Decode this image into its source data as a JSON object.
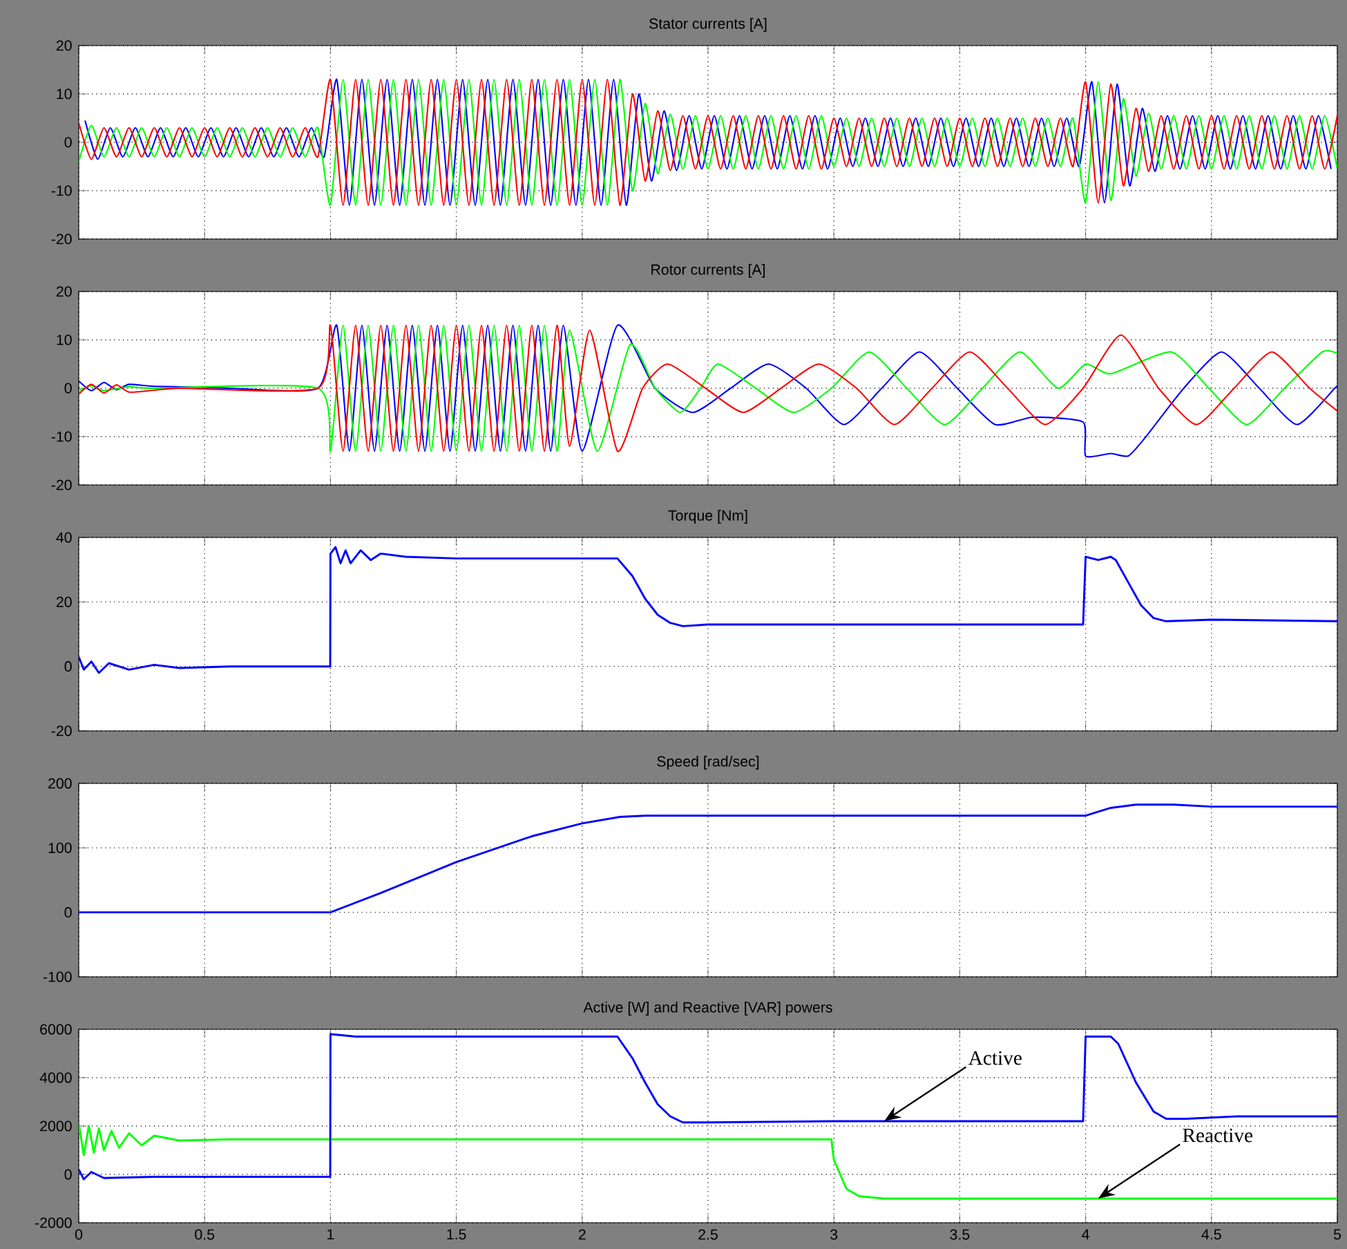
{
  "chart_data": [
    {
      "type": "line",
      "title": "Stator currents [A]",
      "xlim": [
        0,
        5
      ],
      "xticks": [
        0,
        0.5,
        1,
        1.5,
        2,
        2.5,
        3,
        3.5,
        4,
        4.5,
        5
      ],
      "ylim": [
        -20,
        20
      ],
      "yticks": [
        -20,
        -10,
        0,
        10,
        20
      ],
      "grid": true,
      "tick_labels": "y",
      "x": [
        0,
        0.05,
        0.1,
        0.15,
        0.2,
        0.25,
        0.3,
        0.35,
        0.4,
        0.45,
        0.5,
        0.55,
        0.6,
        0.65,
        0.7,
        0.75,
        0.8,
        0.85,
        0.9,
        0.95,
        1,
        1.05,
        1.1,
        1.15,
        1.2,
        1.25,
        1.3,
        1.35,
        1.4,
        1.45,
        1.5,
        1.55,
        1.6,
        1.65,
        1.7,
        1.75,
        1.8,
        1.85,
        1.9,
        1.95,
        2,
        2.05,
        2.1,
        2.15,
        2.2,
        2.25,
        2.3,
        2.35,
        2.4,
        2.45,
        2.5,
        2.55,
        2.6,
        2.65,
        2.7,
        2.75,
        2.8,
        2.85,
        2.9,
        2.95,
        3,
        3.05,
        3.1,
        3.15,
        3.2,
        3.25,
        3.3,
        3.35,
        3.4,
        3.45,
        3.5,
        3.55,
        3.6,
        3.65,
        3.7,
        3.75,
        3.8,
        3.85,
        3.9,
        3.95,
        4,
        4.05,
        4.1,
        4.15,
        4.2,
        4.25,
        4.3,
        4.35,
        4.4,
        4.45,
        4.5,
        4.55,
        4.6,
        4.65,
        4.7,
        4.75,
        4.8,
        4.85,
        4.9,
        4.95,
        5
      ],
      "series": [
        {
          "color": "#0000ff",
          "x": [
            0.025,
            0.075,
            0.125,
            0.175,
            0.225,
            0.275,
            0.325,
            0.375,
            0.425,
            0.475,
            0.525,
            0.575,
            0.625,
            0.675,
            0.725,
            0.775,
            0.825,
            0.875,
            0.925,
            0.975,
            1.025,
            1.075,
            1.125,
            1.175,
            1.225,
            1.275,
            1.325,
            1.375,
            1.425,
            1.475,
            1.525,
            1.575,
            1.625,
            1.675,
            1.725,
            1.775,
            1.825,
            1.875,
            1.925,
            1.975,
            2.025,
            2.075,
            2.125,
            2.175,
            2.225,
            2.275,
            2.325,
            2.375,
            2.425,
            2.475,
            2.525,
            2.575,
            2.625,
            2.675,
            2.725,
            2.775,
            2.825,
            2.875,
            2.925,
            2.975,
            3.025,
            3.075,
            3.125,
            3.175,
            3.225,
            3.275,
            3.325,
            3.375,
            3.425,
            3.475,
            3.525,
            3.575,
            3.625,
            3.675,
            3.725,
            3.775,
            3.825,
            3.875,
            3.925,
            3.975,
            4.025,
            4.075,
            4.125,
            4.175,
            4.225,
            4.275,
            4.325,
            4.375,
            4.425,
            4.475,
            4.525,
            4.575,
            4.625,
            4.675,
            4.725,
            4.775,
            4.825,
            4.875,
            4.925,
            4.975
          ],
          "values": [
            4.5,
            -3.5,
            3,
            -3,
            3,
            -3,
            3,
            -3,
            3,
            -3,
            3,
            -3,
            3,
            -3,
            3,
            -3,
            3,
            -3,
            3,
            -3,
            13,
            -13,
            13,
            -13,
            13,
            -13,
            13,
            -13,
            13,
            -13,
            13,
            -13,
            13,
            -13,
            13,
            -13,
            13,
            -13,
            13,
            -13,
            13,
            -13,
            13,
            -13,
            10,
            -8,
            6.5,
            -5.8,
            5.5,
            -5.5,
            5.5,
            -5.5,
            5.5,
            -5.5,
            5.5,
            -5.5,
            5.5,
            -5.5,
            5.5,
            -5.5,
            5,
            -5,
            5,
            -5,
            5,
            -5,
            5,
            -5,
            5,
            -5,
            5,
            -5,
            5,
            -5,
            5,
            -5,
            5,
            -5,
            5,
            -5,
            12.5,
            -12.5,
            12,
            -9,
            7,
            -6,
            5.5,
            -5.5,
            5.5,
            -5.5,
            5.5,
            -5.5,
            5.5,
            -5.5,
            5.5,
            -5.5,
            5.5,
            -5.5,
            5.5,
            -5.5
          ]
        },
        {
          "color": "#00ff00",
          "values": [
            -4,
            3.5,
            -3,
            3,
            -3,
            3,
            -3,
            3,
            -3,
            3,
            -3,
            3,
            -3,
            3,
            -3,
            3,
            -3,
            3,
            -3,
            3,
            -13,
            13,
            -13,
            13,
            -13,
            13,
            -13,
            13,
            -13,
            13,
            -13,
            13,
            -13,
            13,
            -13,
            13,
            -13,
            13,
            -13,
            13,
            -13,
            13,
            -13,
            13,
            -10,
            8,
            -6.5,
            5.8,
            -5.5,
            5.5,
            -5.5,
            5.5,
            -5.5,
            5.5,
            -5.5,
            5.5,
            -5.5,
            5.5,
            -5.5,
            5.5,
            -5,
            5,
            -5,
            5,
            -5,
            5,
            -5,
            5,
            -5,
            5,
            -5,
            5,
            -5,
            5,
            -5,
            5,
            -5,
            5,
            -5,
            5,
            -12.5,
            12.5,
            -12,
            9,
            -7,
            6,
            -5.5,
            5.5,
            -5.5,
            5.5,
            -5.5,
            5.5,
            -5.5,
            5.5,
            -5.5,
            5.5,
            -5.5,
            5.5,
            -5.5,
            5.5,
            -5.5
          ]
        },
        {
          "color": "#ff0000",
          "values": [
            4,
            -3.5,
            3,
            -3,
            3,
            -3,
            3,
            -3,
            3,
            -3,
            3,
            -3,
            3,
            -3,
            3,
            -3,
            3,
            -3,
            3,
            -3,
            13,
            -13,
            13,
            -13,
            13,
            -13,
            13,
            -13,
            13,
            -13,
            13,
            -13,
            13,
            -13,
            13,
            -13,
            13,
            -13,
            13,
            -13,
            13,
            -13,
            13,
            -13,
            10,
            -8,
            6.5,
            -5.8,
            5.5,
            -5.5,
            5.5,
            -5.5,
            5.5,
            -5.5,
            5.5,
            -5.5,
            5.5,
            -5.5,
            5.5,
            -5.5,
            5,
            -5,
            5,
            -5,
            5,
            -5,
            5,
            -5,
            5,
            -5,
            5,
            -5,
            5,
            -5,
            5,
            -5,
            5,
            -5,
            5,
            -5,
            12.5,
            -12.5,
            12,
            -9,
            7,
            -6,
            5.5,
            -5.5,
            5.5,
            -5.5,
            5.5,
            -5.5,
            5.5,
            -5.5,
            5.5,
            -5.5,
            5.5,
            -5.5,
            5.5,
            -5.5,
            5.5
          ]
        }
      ]
    },
    {
      "type": "line",
      "title": "Rotor currents [A]",
      "xlim": [
        0,
        5
      ],
      "xticks": [
        0,
        0.5,
        1,
        1.5,
        2,
        2.5,
        3,
        3.5,
        4,
        4.5,
        5
      ],
      "ylim": [
        -20,
        20
      ],
      "yticks": [
        -20,
        -10,
        0,
        10,
        20
      ],
      "grid": true,
      "tick_labels": "y",
      "series": [
        {
          "color": "#0000ff",
          "x": [
            0,
            0.05,
            0.1,
            0.15,
            0.2,
            0.3,
            0.5,
            0.6,
            0.95,
            1.025,
            1.075,
            1.125,
            1.175,
            1.225,
            1.275,
            1.325,
            1.375,
            1.425,
            1.475,
            1.525,
            1.575,
            1.625,
            1.675,
            1.725,
            1.775,
            1.825,
            1.875,
            1.925,
            2,
            2.14,
            2.29,
            2.44,
            2.59,
            2.74,
            2.89,
            3.04,
            3.19,
            3.34,
            3.49,
            3.64,
            3.79,
            3.99,
            4,
            4.1,
            4.17,
            4.24,
            4.39,
            4.54,
            4.69,
            4.84,
            4.99,
            5
          ],
          "values": [
            1.5,
            -0.5,
            1.2,
            -0.3,
            0.8,
            0.4,
            0.2,
            0,
            0,
            13,
            -13,
            13,
            -13,
            13,
            -13,
            13,
            -13,
            13,
            -13,
            13,
            -13,
            13,
            -13,
            13,
            -13,
            13,
            -13,
            13,
            -13,
            13,
            0,
            -5,
            0,
            5,
            0,
            -7.5,
            0,
            7.5,
            0,
            -7.5,
            -6,
            -7,
            -14,
            -13.5,
            -14,
            -10,
            0,
            7.5,
            0,
            -7.5,
            0,
            0.5
          ]
        },
        {
          "color": "#00ff00",
          "x": [
            0,
            0.05,
            0.1,
            0.2,
            0.3,
            0.95,
            1,
            1.05,
            1.1,
            1.15,
            1.2,
            1.25,
            1.3,
            1.35,
            1.4,
            1.45,
            1.5,
            1.55,
            1.6,
            1.65,
            1.7,
            1.75,
            1.8,
            1.85,
            1.9,
            1.95,
            2.06,
            2.19,
            2.29,
            2.39,
            2.47,
            2.54,
            2.69,
            2.84,
            2.99,
            3.14,
            3.29,
            3.44,
            3.59,
            3.74,
            3.89,
            4,
            4.1,
            4.34,
            4.49,
            4.64,
            4.79,
            4.94,
            5
          ],
          "values": [
            -0.5,
            0.5,
            -0.5,
            0.3,
            0,
            0,
            -13,
            13,
            -13,
            13,
            -13,
            13,
            -13,
            13,
            -13,
            13,
            -13,
            13,
            -13,
            13,
            -13,
            13,
            -13,
            13,
            -13,
            12,
            -13,
            9,
            0,
            -5,
            0,
            5,
            0,
            -5,
            0,
            7.5,
            0,
            -7.5,
            0,
            7.5,
            0,
            5,
            3,
            7.5,
            0,
            -7.5,
            0,
            7.5,
            7.2
          ]
        },
        {
          "color": "#ff0000",
          "x": [
            0,
            0.05,
            0.1,
            0.15,
            0.2,
            0.3,
            0.4,
            0.95,
            1,
            1.05,
            1.1,
            1.15,
            1.2,
            1.25,
            1.3,
            1.35,
            1.4,
            1.45,
            1.5,
            1.55,
            1.6,
            1.65,
            1.7,
            1.75,
            1.8,
            1.85,
            1.9,
            1.95,
            2.03,
            2.14,
            2.24,
            2.34,
            2.49,
            2.64,
            2.79,
            2.94,
            3.09,
            3.24,
            3.39,
            3.54,
            3.69,
            3.84,
            3.99,
            4.14,
            4.29,
            4.44,
            4.59,
            4.74,
            4.89,
            5
          ],
          "values": [
            -1.2,
            0.8,
            -1,
            0.7,
            -0.8,
            -0.4,
            0,
            0,
            13,
            -13,
            13,
            -13,
            13,
            -13,
            13,
            -13,
            13,
            -13,
            13,
            -13,
            13,
            -13,
            13,
            -13,
            13,
            -13,
            13,
            -12,
            12,
            -13,
            0,
            5,
            0,
            -5,
            0,
            5,
            0,
            -7.5,
            0,
            7.5,
            0,
            -7.5,
            0,
            11,
            0,
            -7.5,
            0,
            7.5,
            0,
            -4.7
          ]
        }
      ]
    },
    {
      "type": "line",
      "title": "Torque [Nm]",
      "xlim": [
        0,
        5
      ],
      "xticks": [
        0,
        0.5,
        1,
        1.5,
        2,
        2.5,
        3,
        3.5,
        4,
        4.5,
        5
      ],
      "ylim": [
        -20,
        40
      ],
      "yticks": [
        -20,
        0,
        20,
        40
      ],
      "grid": true,
      "tick_labels": "y",
      "series": [
        {
          "color": "#0000ff",
          "x": [
            0,
            0.02,
            0.05,
            0.08,
            0.12,
            0.2,
            0.3,
            0.4,
            0.6,
            0.999,
            1,
            1.02,
            1.04,
            1.06,
            1.08,
            1.12,
            1.16,
            1.2,
            1.3,
            1.5,
            2,
            2.14,
            2.2,
            2.25,
            2.3,
            2.35,
            2.4,
            2.5,
            3,
            3.5,
            3.99,
            4,
            4.05,
            4.1,
            4.12,
            4.17,
            4.22,
            4.27,
            4.32,
            4.5,
            5
          ],
          "values": [
            3,
            -1,
            1.5,
            -2,
            1,
            -1,
            0.5,
            -0.5,
            0,
            0,
            35,
            37,
            32,
            36,
            32,
            36,
            33,
            35,
            34,
            33.5,
            33.5,
            33.5,
            28,
            21,
            16,
            13.5,
            12.5,
            13,
            13,
            13,
            13,
            34,
            33,
            34,
            33,
            26,
            19,
            15,
            14,
            14.5,
            14
          ]
        }
      ]
    },
    {
      "type": "line",
      "title": "Speed [rad/sec]",
      "xlim": [
        0,
        5
      ],
      "xticks": [
        0,
        0.5,
        1,
        1.5,
        2,
        2.5,
        3,
        3.5,
        4,
        4.5,
        5
      ],
      "ylim": [
        -100,
        200
      ],
      "yticks": [
        -100,
        0,
        100,
        200
      ],
      "grid": true,
      "tick_labels": "y",
      "series": [
        {
          "color": "#0000ff",
          "x": [
            0,
            1,
            1.2,
            1.5,
            1.8,
            2,
            2.15,
            2.25,
            3,
            4,
            4.1,
            4.2,
            4.35,
            4.5,
            5
          ],
          "values": [
            0,
            0,
            30,
            78,
            118,
            138,
            148,
            150,
            150,
            150,
            162,
            167,
            167,
            164,
            164
          ]
        }
      ]
    },
    {
      "type": "line",
      "title": "Active [W] and Reactive [VAR] powers",
      "xlim": [
        0,
        5
      ],
      "xticks": [
        0,
        0.5,
        1,
        1.5,
        2,
        2.5,
        3,
        3.5,
        4,
        4.5,
        5
      ],
      "ylim": [
        -2000,
        6000
      ],
      "yticks": [
        -2000,
        0,
        2000,
        4000,
        6000
      ],
      "grid": true,
      "annotations": [
        {
          "text": "Active",
          "x": 3.2,
          "y": 2200
        },
        {
          "text": "Reactive",
          "x": 4.05,
          "y": -1000
        }
      ],
      "series": [
        {
          "color": "#00ff00",
          "x": [
            0,
            0.02,
            0.04,
            0.06,
            0.08,
            0.1,
            0.13,
            0.16,
            0.2,
            0.25,
            0.3,
            0.4,
            0.6,
            1,
            2.5,
            2.99,
            3,
            3.05,
            3.1,
            3.2,
            5
          ],
          "values": [
            2100,
            800,
            2000,
            900,
            1900,
            1000,
            1800,
            1100,
            1700,
            1200,
            1600,
            1400,
            1450,
            1450,
            1450,
            1450,
            600,
            -600,
            -900,
            -1000,
            -1000
          ]
        },
        {
          "color": "#0000ff",
          "x": [
            0,
            0.02,
            0.05,
            0.1,
            0.3,
            0.999,
            1,
            1.1,
            2.14,
            2.2,
            2.25,
            2.3,
            2.35,
            2.4,
            2.5,
            3,
            3.99,
            4,
            4.1,
            4.13,
            4.2,
            4.27,
            4.32,
            4.4,
            4.6,
            5
          ],
          "values": [
            200,
            -200,
            100,
            -150,
            -100,
            -100,
            5800,
            5700,
            5700,
            4800,
            3800,
            2900,
            2400,
            2150,
            2150,
            2200,
            2200,
            5700,
            5700,
            5400,
            3800,
            2600,
            2300,
            2300,
            2400,
            2400
          ]
        }
      ]
    }
  ]
}
